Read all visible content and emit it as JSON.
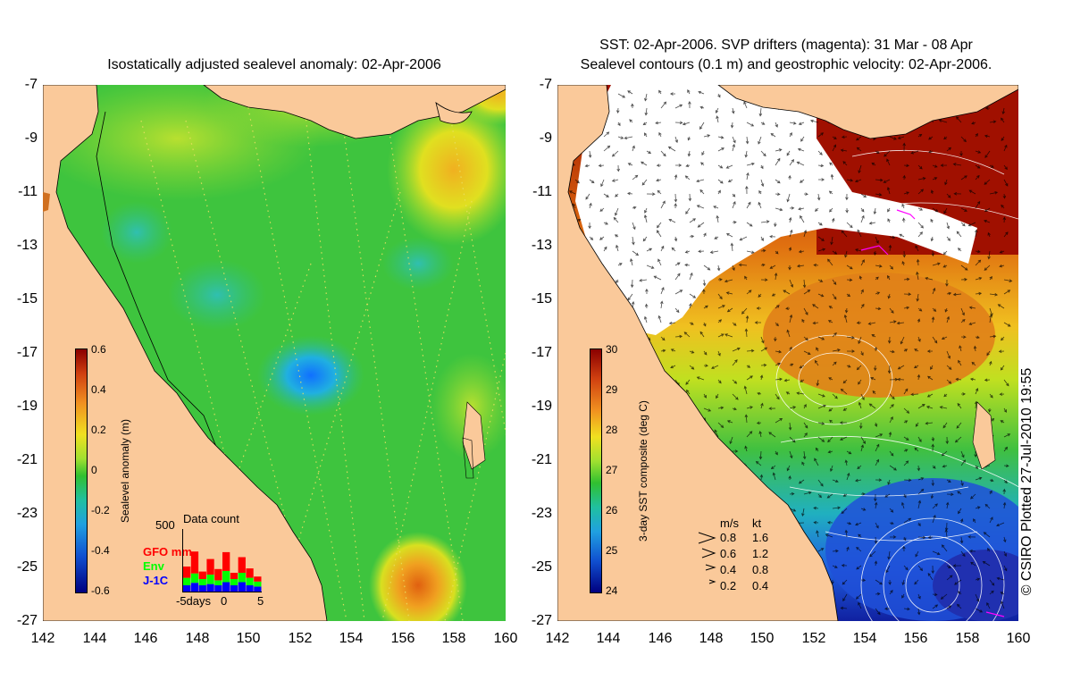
{
  "left_panel": {
    "title": "Isostatically adjusted sealevel anomaly: 02-Apr-2006",
    "y_ticks": [
      "-7",
      "-9",
      "-11",
      "-13",
      "-15",
      "-17",
      "-19",
      "-21",
      "-23",
      "-25",
      "-27"
    ],
    "x_ticks": [
      "142",
      "144",
      "146",
      "148",
      "150",
      "152",
      "154",
      "156",
      "158",
      "160"
    ],
    "colorbar": {
      "label": "Sealevel anomaly (m)",
      "ticks": [
        "0.6",
        "0.4",
        "0.2",
        "0",
        "-0.2",
        "-0.4",
        "-0.6"
      ]
    },
    "data_count": {
      "title": "Data count",
      "y_max_label": "500",
      "x_labels": [
        "-5days",
        "0",
        "5"
      ],
      "sources": [
        {
          "label": "GFO mm",
          "color": "#ff0000"
        },
        {
          "label": "Env",
          "color": "#00ff00"
        },
        {
          "label": "J-1C",
          "color": "#0000ff"
        }
      ],
      "bars": [
        {
          "blue": 0.1,
          "green": 0.12,
          "red": 0.18
        },
        {
          "blue": 0.14,
          "green": 0.15,
          "red": 0.35
        },
        {
          "blue": 0.1,
          "green": 0.1,
          "red": 0.12
        },
        {
          "blue": 0.12,
          "green": 0.15,
          "red": 0.25
        },
        {
          "blue": 0.1,
          "green": 0.08,
          "red": 0.18
        },
        {
          "blue": 0.15,
          "green": 0.18,
          "red": 0.3
        },
        {
          "blue": 0.1,
          "green": 0.1,
          "red": 0.1
        },
        {
          "blue": 0.15,
          "green": 0.15,
          "red": 0.25
        },
        {
          "blue": 0.1,
          "green": 0.12,
          "red": 0.15
        },
        {
          "blue": 0.08,
          "green": 0.08,
          "red": 0.08
        }
      ]
    }
  },
  "right_panel": {
    "title_line1": "SST: 02-Apr-2006. SVP drifters (magenta): 31 Mar - 08 Apr",
    "title_line2": "Sealevel contours (0.1 m) and geostrophic velocity: 02-Apr-2006.",
    "y_ticks": [
      "-7",
      "-9",
      "-11",
      "-13",
      "-15",
      "-17",
      "-19",
      "-21",
      "-23",
      "-25",
      "-27"
    ],
    "x_ticks": [
      "142",
      "144",
      "146",
      "148",
      "150",
      "152",
      "154",
      "156",
      "158",
      "160"
    ],
    "colorbar": {
      "label": "3-day SST composite (deg C)",
      "ticks": [
        "30",
        "29",
        "28",
        "27",
        "26",
        "25",
        "24"
      ]
    },
    "velocity_legend": {
      "header_ms": "m/s",
      "header_kt": "kt",
      "rows": [
        {
          "ms": "0.8",
          "kt": "1.6"
        },
        {
          "ms": "0.6",
          "kt": "1.2"
        },
        {
          "ms": "0.4",
          "kt": "0.8"
        },
        {
          "ms": "0.2",
          "kt": "0.4"
        }
      ]
    }
  },
  "copyright": "© CSIRO Plotted 27-Jul-2010 19:55",
  "colors": {
    "land": "#fac99a",
    "no_data": "#ffffff",
    "sla_mean": "#3ec43e",
    "sst_warm": "#a01000"
  }
}
